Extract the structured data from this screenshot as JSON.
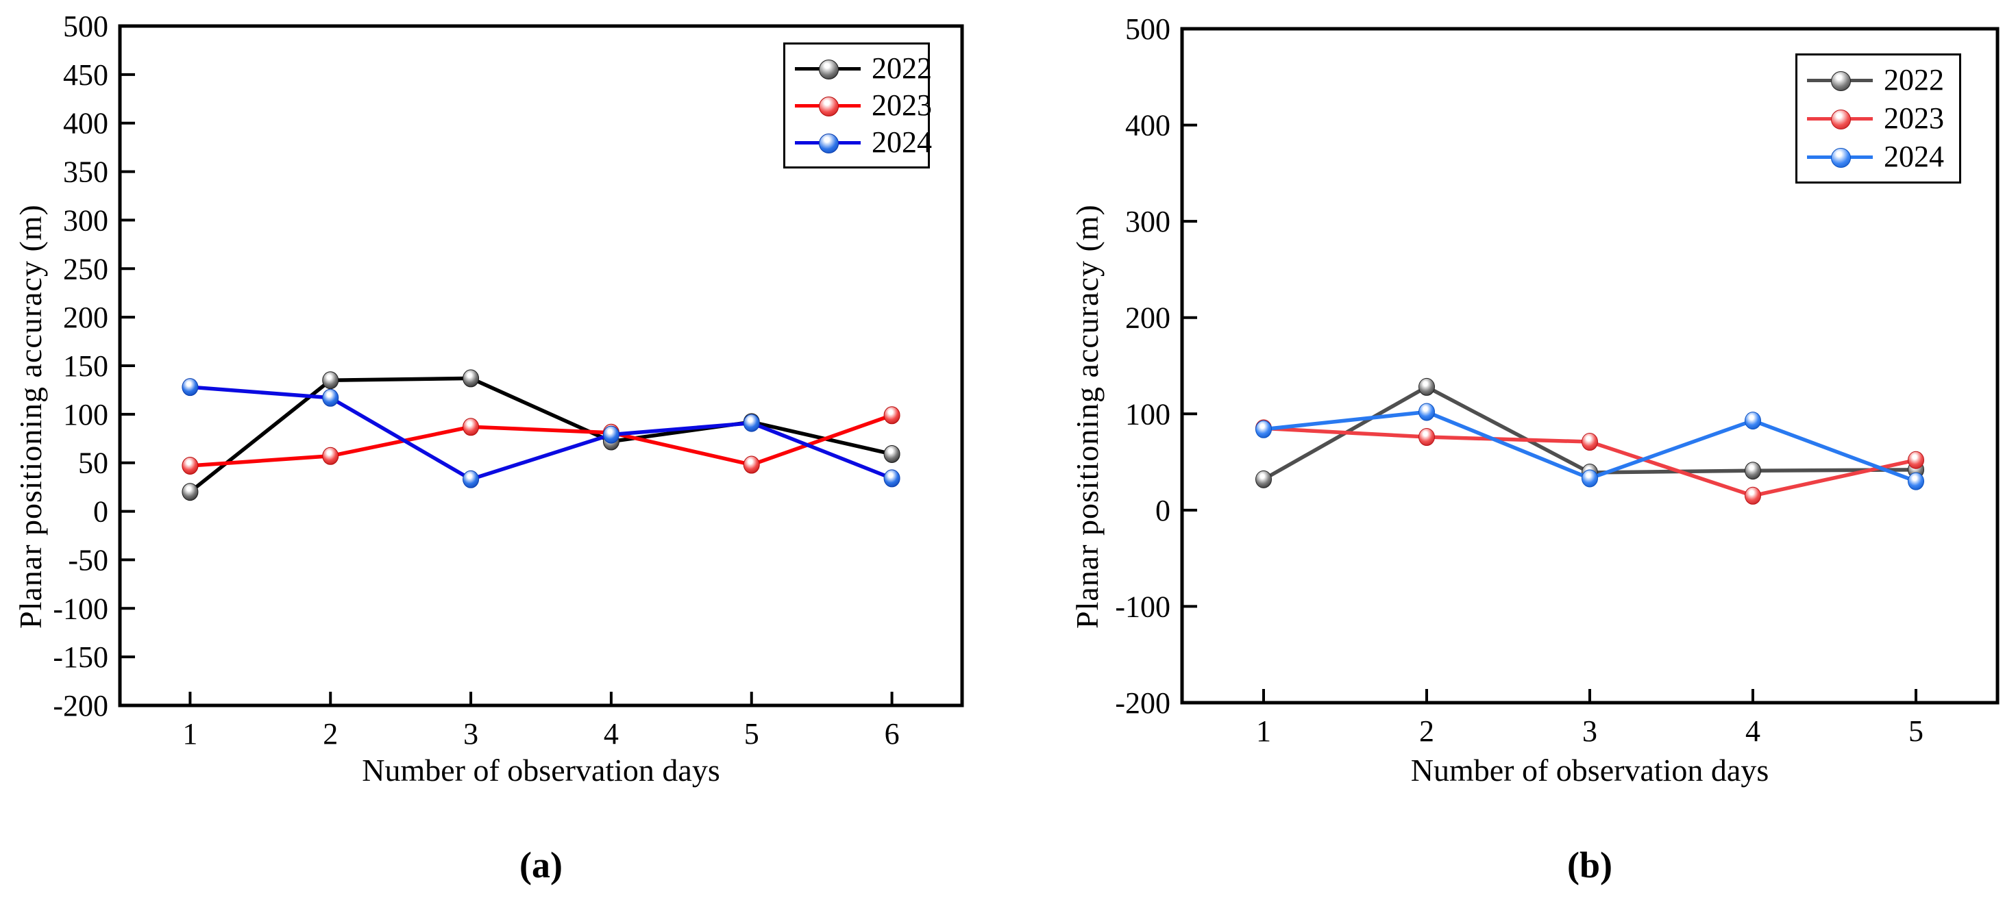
{
  "figure": {
    "background": "#ffffff",
    "axis_color": "#000000",
    "panels": [
      {
        "id": "a",
        "caption": "(a)"
      },
      {
        "id": "b",
        "caption": "(b)"
      }
    ]
  },
  "chart_data": [
    {
      "type": "line",
      "panel": "a",
      "title": "",
      "xlabel": "Number of observation days",
      "ylabel": "Planar positioning accuracy (m)",
      "x": [
        1,
        2,
        3,
        4,
        5,
        6
      ],
      "xtick_labels": [
        "1",
        "2",
        "3",
        "4",
        "5",
        "6"
      ],
      "ylim": [
        -200,
        500
      ],
      "ytick_step": 50,
      "ytick_labels": [
        "500",
        "450",
        "400",
        "350",
        "300",
        "250",
        "200",
        "150",
        "100",
        "50",
        "0",
        "-50",
        "-100",
        "-150",
        "-200"
      ],
      "grid": false,
      "legend_position": "top-right",
      "series": [
        {
          "name": "2022",
          "line_color": "#000000",
          "marker_color": "#787878",
          "marker_dark": "#1c1c1c",
          "values": [
            20,
            135,
            137,
            72,
            92,
            59
          ]
        },
        {
          "name": "2023",
          "line_color": "#fb0006",
          "marker_color": "#f24b4b",
          "marker_dark": "#b50b0b",
          "values": [
            47,
            57,
            87,
            81,
            48,
            99
          ]
        },
        {
          "name": "2024",
          "line_color": "#0a0ae1",
          "marker_color": "#2e74e8",
          "marker_dark": "#0a3eae",
          "values": [
            128,
            117,
            33,
            79,
            91,
            34
          ]
        }
      ]
    },
    {
      "type": "line",
      "panel": "b",
      "title": "",
      "xlabel": "Number of observation days",
      "ylabel": "Planar positioning accuracy (m)",
      "x": [
        1,
        2,
        3,
        4,
        5
      ],
      "xtick_labels": [
        "1",
        "2",
        "3",
        "4",
        "5"
      ],
      "ylim": [
        -200,
        500
      ],
      "ytick_step": 100,
      "ytick_labels": [
        "500",
        "400",
        "300",
        "200",
        "100",
        "0",
        "-100",
        "-200"
      ],
      "grid": false,
      "legend_position": "top-right",
      "series": [
        {
          "name": "2022",
          "line_color": "#4f4f4f",
          "marker_color": "#7d7d7d",
          "marker_dark": "#242424",
          "values": [
            32,
            128,
            39,
            41,
            42
          ]
        },
        {
          "name": "2023",
          "line_color": "#ee3f44",
          "marker_color": "#f25353",
          "marker_dark": "#bc1418",
          "values": [
            85,
            76,
            71,
            15,
            52
          ]
        },
        {
          "name": "2024",
          "line_color": "#2979f0",
          "marker_color": "#3d86f5",
          "marker_dark": "#0a50c0",
          "values": [
            84,
            102,
            33,
            93,
            30
          ]
        }
      ]
    }
  ]
}
